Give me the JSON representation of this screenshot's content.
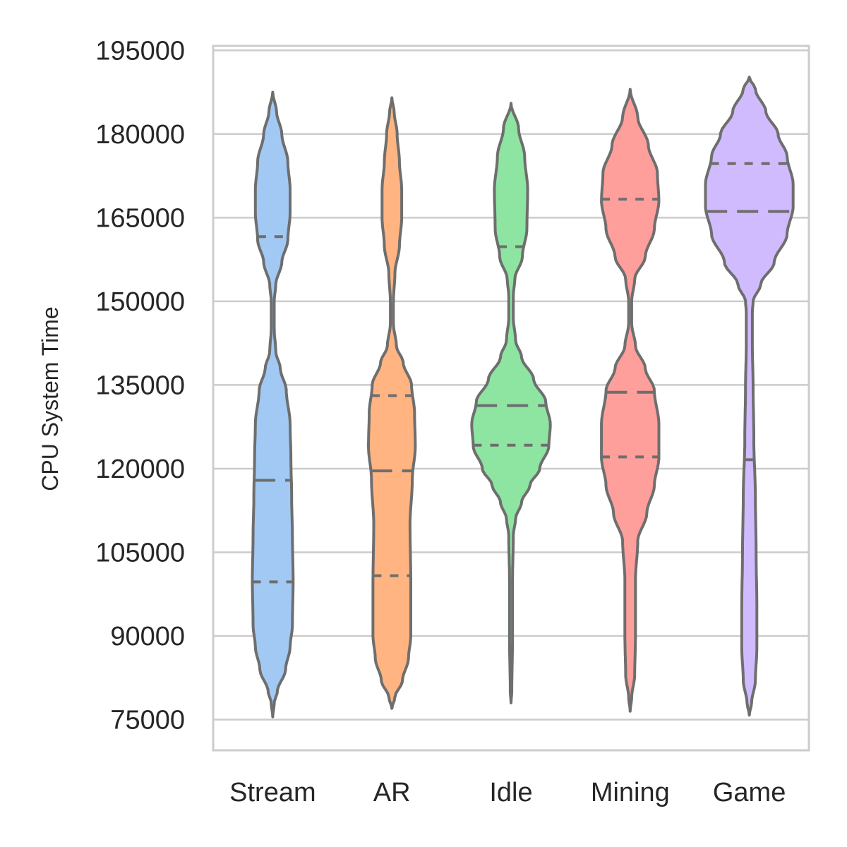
{
  "chart_data": {
    "type": "violin",
    "title": "",
    "xlabel": "",
    "ylabel": "CPU System Time",
    "ylim": [
      69500,
      195800
    ],
    "y_ticks": [
      "75000",
      "90000",
      "105000",
      "120000",
      "135000",
      "150000",
      "165000",
      "180000",
      "195000"
    ],
    "y_tick_values": [
      75000,
      90000,
      105000,
      120000,
      135000,
      150000,
      165000,
      180000,
      195000
    ],
    "grid": true,
    "categories": [
      "Stream",
      "AR",
      "Idle",
      "Mining",
      "Game"
    ],
    "series": [
      {
        "category": "Stream",
        "color": "#a1c9f4",
        "range": [
          75500,
          187500
        ],
        "quartiles": [
          99700,
          117900,
          161600
        ],
        "density_profile": [
          [
            75500,
            0
          ],
          [
            78000,
            0.02
          ],
          [
            80000,
            0.06
          ],
          [
            84000,
            0.17
          ],
          [
            88000,
            0.23
          ],
          [
            92000,
            0.26
          ],
          [
            100000,
            0.27
          ],
          [
            108000,
            0.26
          ],
          [
            115000,
            0.25
          ],
          [
            122000,
            0.24
          ],
          [
            128000,
            0.23
          ],
          [
            134000,
            0.18
          ],
          [
            138000,
            0.1
          ],
          [
            141000,
            0.04
          ],
          [
            145000,
            0.02
          ],
          [
            150000,
            0.02
          ],
          [
            153000,
            0.04
          ],
          [
            157000,
            0.12
          ],
          [
            161000,
            0.2
          ],
          [
            166000,
            0.23
          ],
          [
            170000,
            0.23
          ],
          [
            175000,
            0.2
          ],
          [
            180000,
            0.12
          ],
          [
            184000,
            0.05
          ],
          [
            187500,
            0
          ]
        ]
      },
      {
        "category": "AR",
        "color": "#ffb482",
        "range": [
          77000,
          186500
        ],
        "quartiles": [
          100800,
          119600,
          133100
        ],
        "density_profile": [
          [
            77000,
            0
          ],
          [
            79000,
            0.04
          ],
          [
            82000,
            0.14
          ],
          [
            86000,
            0.22
          ],
          [
            90000,
            0.25
          ],
          [
            100000,
            0.25
          ],
          [
            110000,
            0.24
          ],
          [
            118000,
            0.27
          ],
          [
            124000,
            0.31
          ],
          [
            130000,
            0.3
          ],
          [
            135000,
            0.26
          ],
          [
            139000,
            0.15
          ],
          [
            142000,
            0.06
          ],
          [
            146000,
            0.02
          ],
          [
            150000,
            0.02
          ],
          [
            155000,
            0.04
          ],
          [
            160000,
            0.1
          ],
          [
            165000,
            0.13
          ],
          [
            170000,
            0.13
          ],
          [
            175000,
            0.1
          ],
          [
            180000,
            0.07
          ],
          [
            184000,
            0.03
          ],
          [
            186500,
            0
          ]
        ]
      },
      {
        "category": "Idle",
        "color": "#8de5a1",
        "range": [
          78000,
          185500
        ],
        "quartiles": [
          124200,
          131300,
          159800
        ],
        "density_profile": [
          [
            78000,
            0
          ],
          [
            80000,
            0.01
          ],
          [
            90000,
            0.02
          ],
          [
            100000,
            0.02
          ],
          [
            108000,
            0.03
          ],
          [
            111000,
            0.06
          ],
          [
            114000,
            0.14
          ],
          [
            117000,
            0.25
          ],
          [
            120000,
            0.38
          ],
          [
            124000,
            0.5
          ],
          [
            128000,
            0.52
          ],
          [
            132000,
            0.46
          ],
          [
            136000,
            0.3
          ],
          [
            140000,
            0.14
          ],
          [
            143000,
            0.06
          ],
          [
            147000,
            0.03
          ],
          [
            151000,
            0.03
          ],
          [
            154000,
            0.05
          ],
          [
            158000,
            0.15
          ],
          [
            163000,
            0.21
          ],
          [
            170000,
            0.22
          ],
          [
            176000,
            0.18
          ],
          [
            181000,
            0.1
          ],
          [
            185500,
            0
          ]
        ]
      },
      {
        "category": "Mining",
        "color": "#ff9f9b",
        "range": [
          76500,
          188000
        ],
        "quartiles": [
          122100,
          133700,
          168300
        ],
        "density_profile": [
          [
            76500,
            0
          ],
          [
            79000,
            0.02
          ],
          [
            83000,
            0.06
          ],
          [
            90000,
            0.07
          ],
          [
            100000,
            0.07
          ],
          [
            107000,
            0.1
          ],
          [
            112000,
            0.22
          ],
          [
            117000,
            0.32
          ],
          [
            122000,
            0.38
          ],
          [
            128000,
            0.38
          ],
          [
            134000,
            0.32
          ],
          [
            138000,
            0.2
          ],
          [
            142000,
            0.07
          ],
          [
            146000,
            0.02
          ],
          [
            150000,
            0.02
          ],
          [
            154000,
            0.06
          ],
          [
            158000,
            0.2
          ],
          [
            163000,
            0.32
          ],
          [
            168000,
            0.38
          ],
          [
            173000,
            0.36
          ],
          [
            178000,
            0.24
          ],
          [
            183000,
            0.1
          ],
          [
            188000,
            0
          ]
        ]
      },
      {
        "category": "Game",
        "color": "#d0bbff",
        "range": [
          75800,
          190200
        ],
        "quartiles": [
          121600,
          166100,
          174700
        ],
        "density_profile": [
          [
            75800,
            0
          ],
          [
            78000,
            0.03
          ],
          [
            82000,
            0.08
          ],
          [
            88000,
            0.1
          ],
          [
            95000,
            0.1
          ],
          [
            105000,
            0.09
          ],
          [
            115000,
            0.08
          ],
          [
            125000,
            0.06
          ],
          [
            135000,
            0.05
          ],
          [
            142000,
            0.04
          ],
          [
            148000,
            0.04
          ],
          [
            150000,
            0.05
          ],
          [
            153000,
            0.15
          ],
          [
            157000,
            0.33
          ],
          [
            162000,
            0.5
          ],
          [
            167000,
            0.58
          ],
          [
            171000,
            0.58
          ],
          [
            176000,
            0.5
          ],
          [
            180000,
            0.38
          ],
          [
            184000,
            0.22
          ],
          [
            188000,
            0.08
          ],
          [
            190200,
            0
          ]
        ]
      }
    ]
  },
  "colors": {
    "violin_edge": "#6e6e6e",
    "grid": "#cccccc",
    "spine": "#cccccc",
    "text": "#262626"
  }
}
